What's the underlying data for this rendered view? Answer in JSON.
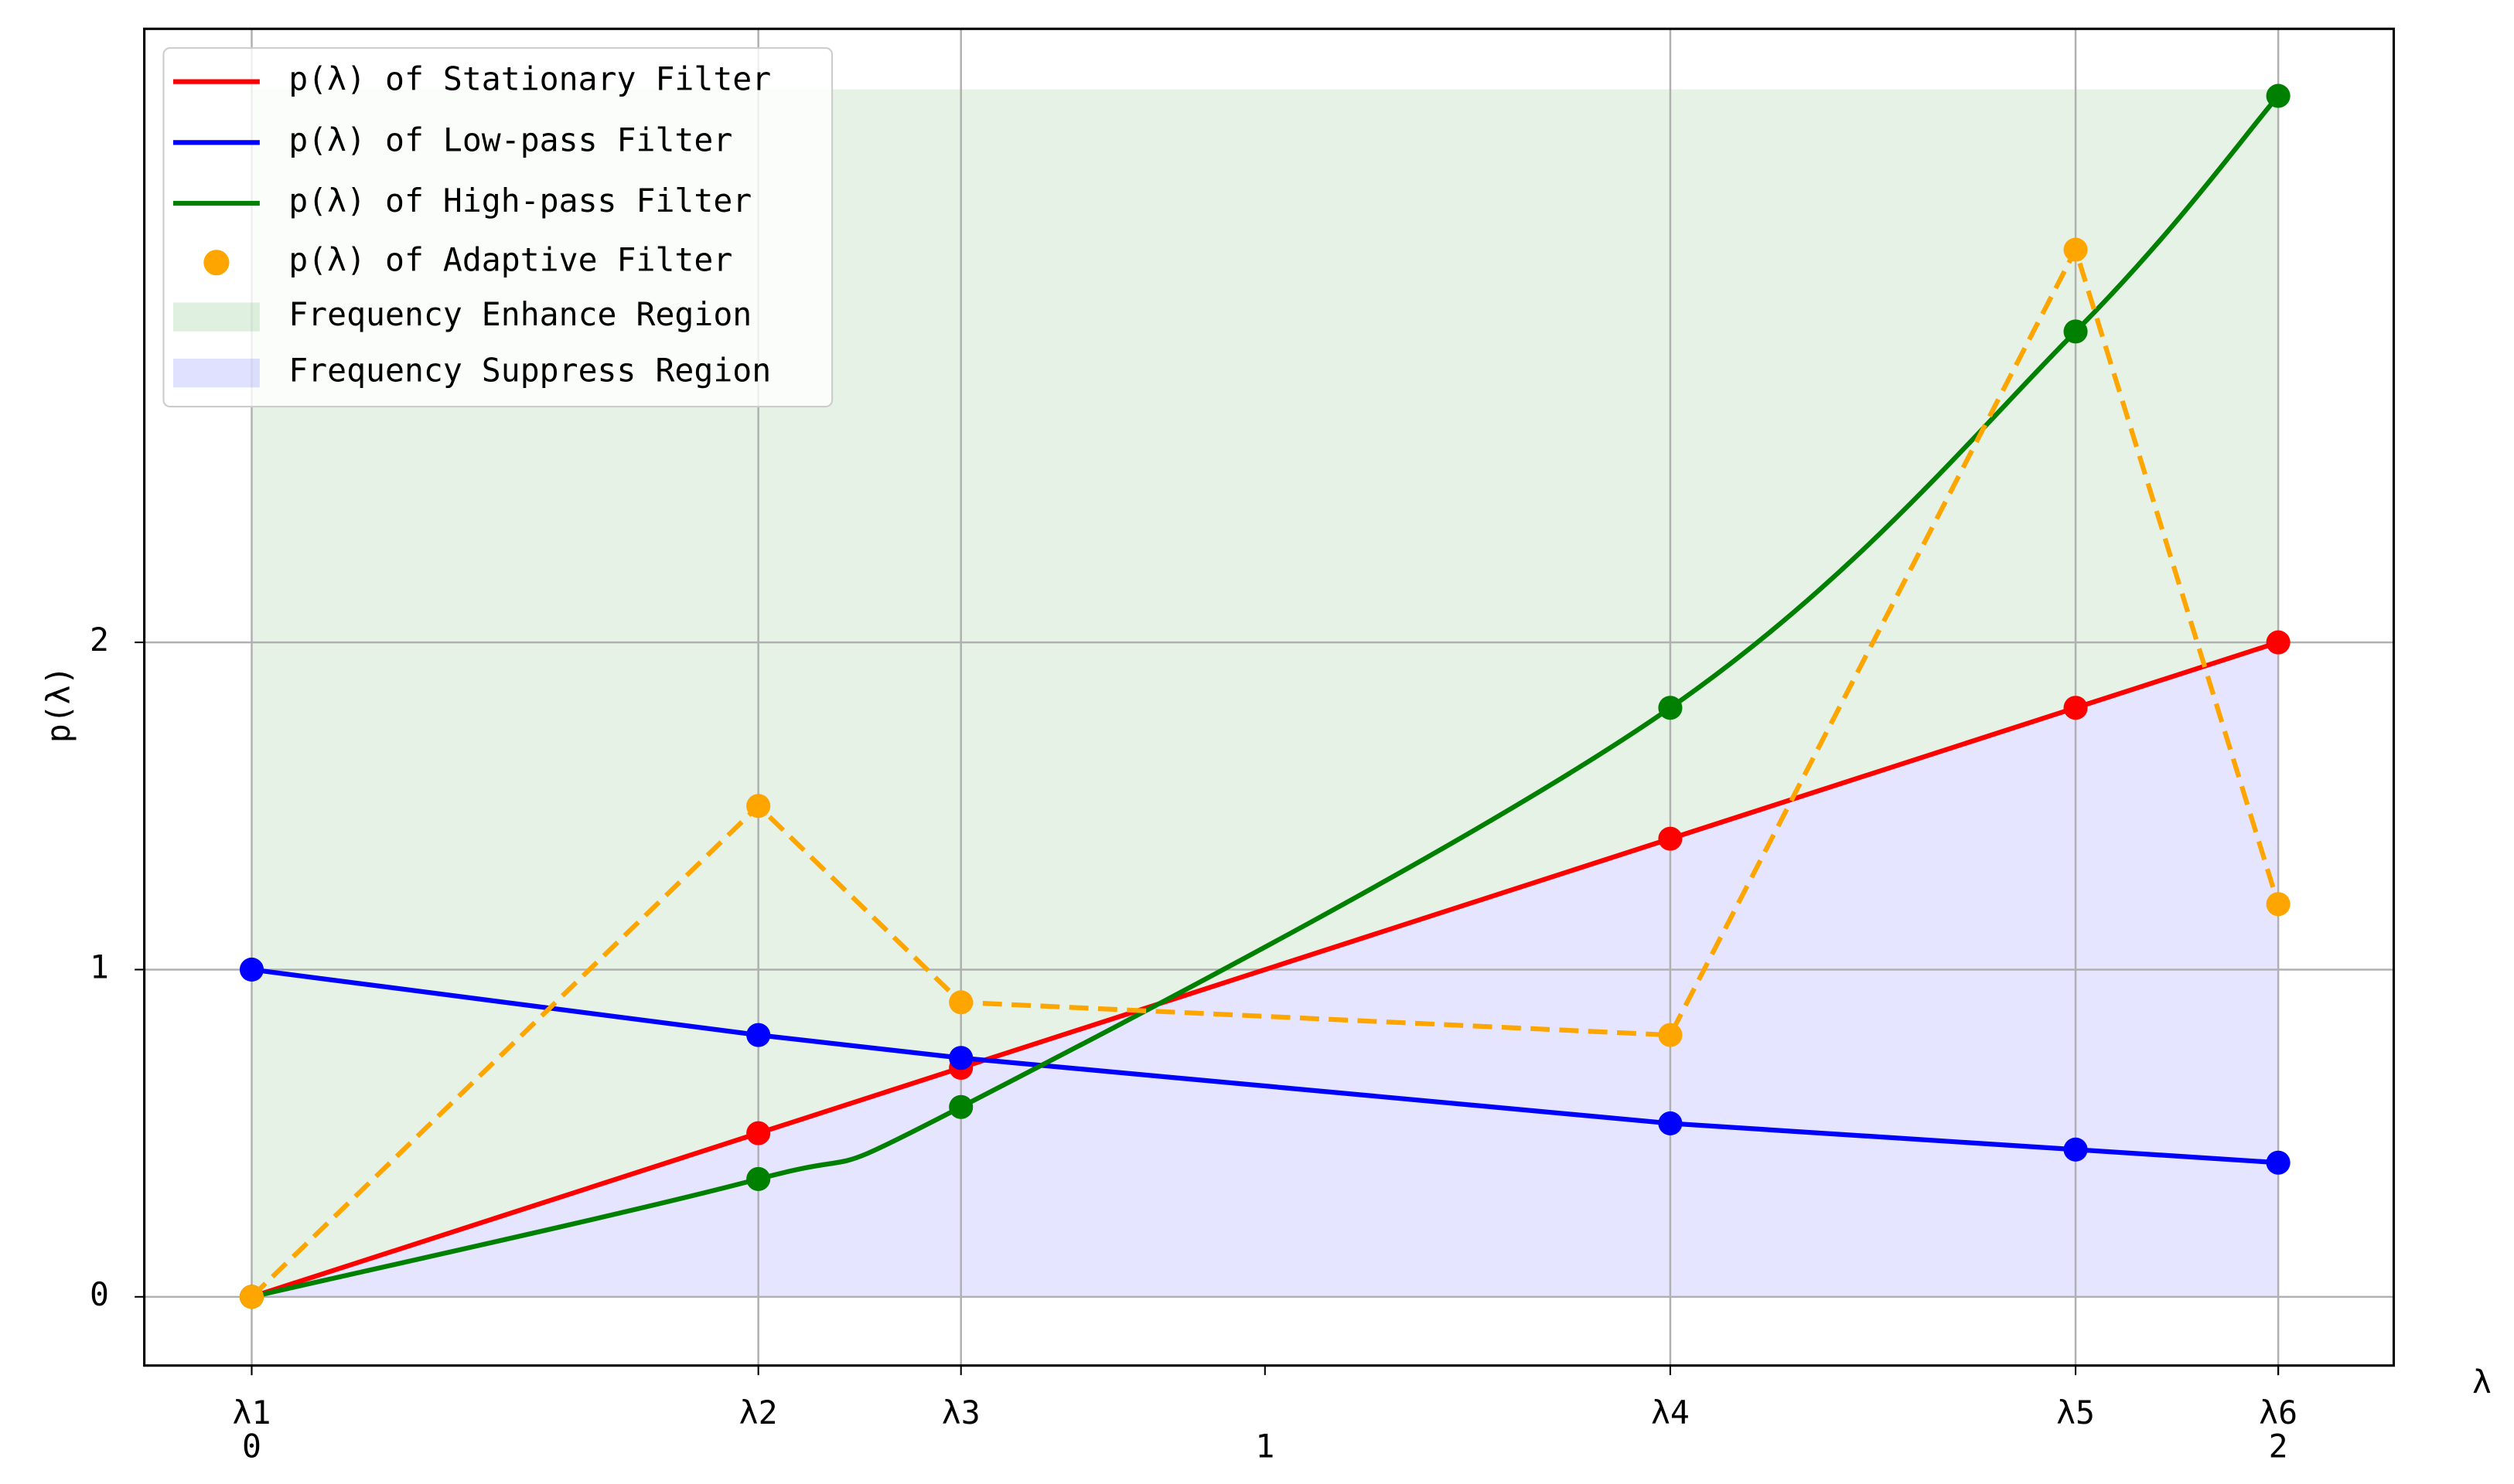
{
  "chart_data": {
    "type": "line",
    "xlabel": "λ",
    "ylabel": "p(λ)",
    "x": [
      0,
      0.5,
      0.7,
      1.4,
      1.8,
      2
    ],
    "series": [
      {
        "name": "p(λ) of Stationary Filter",
        "color": "red",
        "style": "line",
        "values": [
          0,
          0.5,
          0.7,
          1.4,
          1.8,
          2
        ]
      },
      {
        "name": "p(λ) of Low-pass Filter",
        "color": "blue",
        "style": "line",
        "values": [
          1,
          0.8,
          0.73,
          0.53,
          0.45,
          0.41
        ]
      },
      {
        "name": "p(λ) of High-pass Filter",
        "color": "green",
        "style": "line",
        "smooth": true,
        "values": [
          0,
          0.36,
          0.58,
          1.8,
          2.95,
          3.67
        ]
      },
      {
        "name": "p(λ) of Adaptive Filter",
        "color": "orange",
        "style": "dashed-scatter",
        "values": [
          0,
          1.5,
          0.9,
          0.8,
          3.2,
          1.2
        ]
      }
    ],
    "regions": [
      {
        "name": "Frequency Enhance Region",
        "color": "green",
        "opacity": 0.1,
        "upper": 3.69,
        "lower_series": 0
      },
      {
        "name": "Frequency Suppress Region",
        "color": "blue",
        "opacity": 0.1,
        "upper_series": 0,
        "lower": 0
      }
    ],
    "xlim": [
      -0.106,
      2.114
    ],
    "ylim": [
      -0.21,
      3.875
    ],
    "xticks": [
      0,
      1,
      2
    ],
    "lambda_ticks": [
      {
        "value": 0,
        "label": "λ1"
      },
      {
        "value": 0.5,
        "label": "λ2"
      },
      {
        "value": 0.7,
        "label": "λ3"
      },
      {
        "value": 1.4,
        "label": "λ4"
      },
      {
        "value": 1.8,
        "label": "λ5"
      },
      {
        "value": 2,
        "label": "λ6"
      }
    ],
    "yticks": [
      0,
      1,
      2
    ],
    "grid": true,
    "legend": "upper left"
  }
}
